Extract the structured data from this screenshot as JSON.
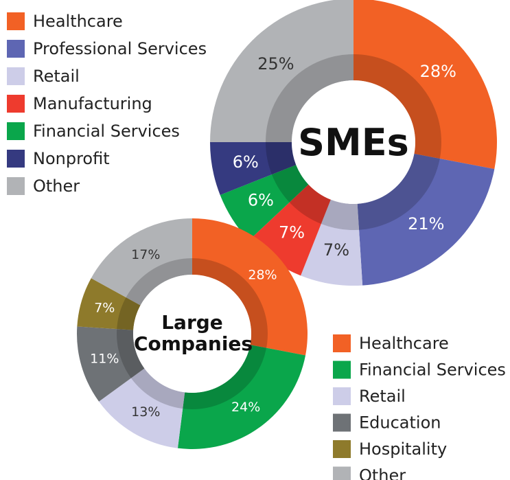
{
  "chart_data": [
    {
      "type": "pie",
      "title": "SMEs",
      "categories": [
        "Healthcare",
        "Professional Services",
        "Retail",
        "Manufacturing",
        "Financial Services",
        "Nonprofit",
        "Other"
      ],
      "values": [
        28,
        21,
        7,
        7,
        6,
        6,
        25
      ],
      "value_labels": [
        "28%",
        "21%",
        "7%",
        "7%",
        "6%",
        "6%",
        "25%"
      ],
      "colors": [
        "#f26125",
        "#5e66b3",
        "#cdcde8",
        "#ee3b2e",
        "#0aa64b",
        "#353a80",
        "#b1b3b6"
      ],
      "legend": "left"
    },
    {
      "type": "pie",
      "title": "Large Companies",
      "categories": [
        "Healthcare",
        "Financial Services",
        "Retail",
        "Education",
        "Hospitality",
        "Other"
      ],
      "values": [
        28,
        24,
        13,
        11,
        7,
        17
      ],
      "value_labels": [
        "28%",
        "24%",
        "13%",
        "11%",
        "7%",
        "17%"
      ],
      "colors": [
        "#f26125",
        "#0aa64b",
        "#cdcde8",
        "#6e7276",
        "#8e7a2b",
        "#b1b3b6"
      ],
      "legend": "right"
    }
  ]
}
